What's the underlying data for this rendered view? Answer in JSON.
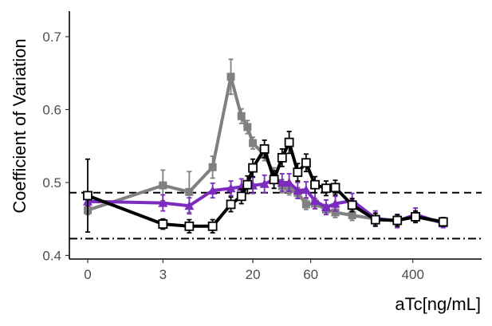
{
  "chart_data": {
    "type": "line",
    "xlabel": "aTc[ng/mL]",
    "ylabel": "Coefficient of Variation",
    "x_scale": "symlog",
    "xlim": [
      0,
      1000
    ],
    "ylim": [
      0.395,
      0.735
    ],
    "x_ticks": [
      0,
      3,
      20,
      60,
      400
    ],
    "x_tick_labels": [
      "0",
      "3",
      "20",
      "60",
      "400"
    ],
    "y_ticks": [
      0.4,
      0.5,
      0.6,
      0.7
    ],
    "y_tick_labels": [
      "0.4",
      "0.5",
      "0.6",
      "0.7"
    ],
    "grid": false,
    "reference_lines": [
      {
        "style": "dashed",
        "y": 0.486
      },
      {
        "style": "dashdot",
        "y": 0.423
      }
    ],
    "series": [
      {
        "color": "#808080",
        "marker": "filled-square",
        "points": [
          {
            "x": 0,
            "y": 0.462,
            "err": 0.006
          },
          {
            "x": 3,
            "y": 0.496,
            "err": 0.021
          },
          {
            "x": 5.5,
            "y": 0.487,
            "err": 0.028
          },
          {
            "x": 9,
            "y": 0.521,
            "err": 0.015
          },
          {
            "x": 13,
            "y": 0.645,
            "err": 0.024
          },
          {
            "x": 16,
            "y": 0.591,
            "err": 0.01
          },
          {
            "x": 18,
            "y": 0.576,
            "err": 0.009
          },
          {
            "x": 20,
            "y": 0.554,
            "err": 0.008
          },
          {
            "x": 25,
            "y": 0.538,
            "err": 0.008
          },
          {
            "x": 30,
            "y": 0.512,
            "err": 0.008
          },
          {
            "x": 35,
            "y": 0.495,
            "err": 0.009
          },
          {
            "x": 40,
            "y": 0.491,
            "err": 0.008
          },
          {
            "x": 47,
            "y": 0.486,
            "err": 0.007
          },
          {
            "x": 55,
            "y": 0.47,
            "err": 0.007
          },
          {
            "x": 65,
            "y": 0.471,
            "err": 0.007
          },
          {
            "x": 80,
            "y": 0.463,
            "err": 0.007
          },
          {
            "x": 95,
            "y": 0.459,
            "err": 0.007
          },
          {
            "x": 130,
            "y": 0.455,
            "err": 0.007
          },
          {
            "x": 200,
            "y": 0.45,
            "err": 0.007
          },
          {
            "x": 300,
            "y": 0.448,
            "err": 0.006
          },
          {
            "x": 420,
            "y": 0.453,
            "err": 0.006
          },
          {
            "x": 700,
            "y": 0.445,
            "err": 0.006
          }
        ]
      },
      {
        "color": "#7b2cbf",
        "marker": "filled-triangle",
        "points": [
          {
            "x": 0,
            "y": 0.474,
            "err": 0.006
          },
          {
            "x": 3,
            "y": 0.472,
            "err": 0.011
          },
          {
            "x": 5.5,
            "y": 0.468,
            "err": 0.011
          },
          {
            "x": 9,
            "y": 0.489,
            "err": 0.01
          },
          {
            "x": 13,
            "y": 0.492,
            "err": 0.01
          },
          {
            "x": 16,
            "y": 0.494,
            "err": 0.011
          },
          {
            "x": 20,
            "y": 0.496,
            "err": 0.011
          },
          {
            "x": 25,
            "y": 0.498,
            "err": 0.012
          },
          {
            "x": 30,
            "y": 0.504,
            "err": 0.012
          },
          {
            "x": 35,
            "y": 0.5,
            "err": 0.012
          },
          {
            "x": 40,
            "y": 0.5,
            "err": 0.012
          },
          {
            "x": 47,
            "y": 0.489,
            "err": 0.011
          },
          {
            "x": 55,
            "y": 0.49,
            "err": 0.011
          },
          {
            "x": 65,
            "y": 0.475,
            "err": 0.011
          },
          {
            "x": 80,
            "y": 0.466,
            "err": 0.01
          },
          {
            "x": 95,
            "y": 0.471,
            "err": 0.01
          },
          {
            "x": 130,
            "y": 0.475,
            "err": 0.01
          },
          {
            "x": 200,
            "y": 0.451,
            "err": 0.01
          },
          {
            "x": 300,
            "y": 0.447,
            "err": 0.009
          },
          {
            "x": 420,
            "y": 0.456,
            "err": 0.009
          },
          {
            "x": 700,
            "y": 0.444,
            "err": 0.006
          }
        ]
      },
      {
        "color": "#000000",
        "marker": "open-square",
        "points": [
          {
            "x": 0,
            "y": 0.482,
            "err": 0.05
          },
          {
            "x": 3,
            "y": 0.443,
            "err": 0.007
          },
          {
            "x": 5.5,
            "y": 0.44,
            "err": 0.009
          },
          {
            "x": 9,
            "y": 0.44,
            "err": 0.009
          },
          {
            "x": 13,
            "y": 0.47,
            "err": 0.01
          },
          {
            "x": 16,
            "y": 0.481,
            "err": 0.01
          },
          {
            "x": 18,
            "y": 0.497,
            "err": 0.012
          },
          {
            "x": 20,
            "y": 0.52,
            "err": 0.012
          },
          {
            "x": 25,
            "y": 0.546,
            "err": 0.012
          },
          {
            "x": 30,
            "y": 0.504,
            "err": 0.012
          },
          {
            "x": 35,
            "y": 0.534,
            "err": 0.012
          },
          {
            "x": 40,
            "y": 0.555,
            "err": 0.015
          },
          {
            "x": 47,
            "y": 0.514,
            "err": 0.012
          },
          {
            "x": 55,
            "y": 0.527,
            "err": 0.012
          },
          {
            "x": 65,
            "y": 0.497,
            "err": 0.011
          },
          {
            "x": 80,
            "y": 0.492,
            "err": 0.01
          },
          {
            "x": 95,
            "y": 0.493,
            "err": 0.01
          },
          {
            "x": 130,
            "y": 0.469,
            "err": 0.009
          },
          {
            "x": 200,
            "y": 0.449,
            "err": 0.009
          },
          {
            "x": 300,
            "y": 0.448,
            "err": 0.008
          },
          {
            "x": 420,
            "y": 0.453,
            "err": 0.008
          },
          {
            "x": 700,
            "y": 0.446,
            "err": 0.006
          }
        ]
      }
    ]
  }
}
